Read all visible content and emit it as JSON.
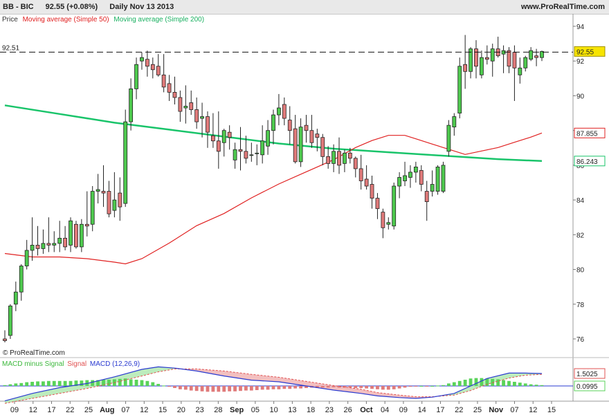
{
  "header": {
    "symbol": "BB - BIC",
    "price_change": "92.55 (+0.08%)",
    "period_date": "Daily  Nov 13 2013",
    "site": "www.ProRealTime.com"
  },
  "legend": {
    "price": "Price",
    "ma50": "Moving average (Simple 50)",
    "ma200": "Moving average (Simple 200)"
  },
  "watermark": "© ProRealTime.com",
  "macd_legend": {
    "diff": "MACD minus Signal",
    "signal": "Signal",
    "macd": "MACD (12,26,9)"
  },
  "colors": {
    "up": "#4ec94e",
    "down": "#e07a7a",
    "ma50": "#e02020",
    "ma200": "#19c46a",
    "macd": "#2a3ad0",
    "signal": "#e05050",
    "macd_bar": "#59d359"
  },
  "chart_data": [
    {
      "type": "candlestick",
      "title": "BB - BIC",
      "ylim": [
        75,
        94.5
      ],
      "yticks": [
        76,
        78,
        80,
        82,
        84,
        86,
        88,
        90,
        92,
        94
      ],
      "x_tick_labels": [
        "09",
        "12",
        "17",
        "22",
        "25",
        "Aug",
        "07",
        "12",
        "15",
        "20",
        "23",
        "28",
        "Sep",
        "05",
        "10",
        "13",
        "18",
        "23",
        "26",
        "Oct",
        "04",
        "09",
        "14",
        "17",
        "22",
        "25",
        "Nov",
        "07",
        "12",
        "15"
      ],
      "bold_tick_labels": [
        "Aug",
        "Sep",
        "Oct",
        "Nov"
      ],
      "reference_line": {
        "label": "92.51",
        "value": 92.51
      },
      "last_price_label": "92.55",
      "ma50_label": "87.855",
      "ma200_label": "86.243",
      "candles": [
        [
          76.0,
          76.5,
          75.8,
          75.9
        ],
        [
          76.2,
          78.0,
          76.0,
          77.9
        ],
        [
          78.0,
          79.3,
          77.6,
          78.7
        ],
        [
          78.7,
          80.3,
          78.2,
          80.2
        ],
        [
          80.2,
          81.7,
          80.0,
          81.1
        ],
        [
          81.1,
          83.0,
          80.5,
          81.4
        ],
        [
          81.4,
          82.5,
          80.8,
          81.2
        ],
        [
          81.2,
          82.3,
          80.9,
          81.5
        ],
        [
          81.5,
          83.0,
          81.0,
          81.4
        ],
        [
          81.4,
          82.2,
          81.0,
          81.5
        ],
        [
          81.5,
          82.8,
          81.0,
          81.8
        ],
        [
          81.8,
          82.5,
          81.1,
          81.3
        ],
        [
          81.4,
          83.0,
          81.0,
          82.8
        ],
        [
          82.6,
          82.8,
          81.2,
          81.3
        ],
        [
          81.3,
          82.9,
          81.0,
          82.6
        ],
        [
          82.6,
          84.5,
          81.9,
          82.5
        ],
        [
          82.6,
          84.8,
          82.2,
          84.5
        ],
        [
          84.5,
          85.5,
          83.8,
          84.6
        ],
        [
          84.5,
          86.0,
          83.6,
          84.4
        ],
        [
          84.5,
          85.1,
          83.0,
          83.2
        ],
        [
          83.4,
          85.6,
          83.0,
          84.0
        ],
        [
          84.4,
          85.3,
          82.8,
          83.6
        ],
        [
          83.8,
          89.2,
          83.6,
          88.5
        ],
        [
          88.5,
          91.0,
          88.0,
          90.4
        ],
        [
          90.4,
          92.2,
          89.8,
          91.8
        ],
        [
          92.0,
          92.5,
          91.5,
          92.2
        ],
        [
          92.1,
          92.6,
          91.1,
          91.7
        ],
        [
          91.8,
          92.2,
          91.0,
          91.5
        ],
        [
          91.7,
          92.4,
          91.1,
          91.2
        ],
        [
          91.2,
          92.4,
          90.2,
          90.5
        ],
        [
          90.7,
          91.2,
          89.7,
          90.2
        ],
        [
          90.2,
          91.1,
          89.5,
          89.9
        ],
        [
          89.9,
          90.3,
          88.5,
          89.1
        ],
        [
          89.3,
          90.6,
          88.4,
          89.4
        ],
        [
          89.6,
          90.3,
          88.9,
          89.2
        ],
        [
          89.2,
          89.9,
          88.1,
          88.5
        ],
        [
          88.7,
          89.6,
          87.6,
          88.8
        ],
        [
          88.8,
          89.1,
          87.0,
          87.9
        ],
        [
          87.7,
          89.0,
          87.0,
          87.4
        ],
        [
          87.4,
          89.1,
          85.8,
          86.8
        ],
        [
          87.3,
          88.1,
          86.5,
          88.0
        ],
        [
          87.9,
          88.3,
          86.9,
          87.6
        ],
        [
          86.3,
          87.3,
          85.8,
          86.9
        ],
        [
          86.9,
          88.2,
          85.7,
          86.8
        ],
        [
          86.8,
          87.7,
          86.1,
          86.4
        ],
        [
          86.6,
          87.3,
          86.2,
          86.6
        ],
        [
          86.7,
          87.2,
          86.0,
          86.7
        ],
        [
          86.6,
          88.3,
          86.1,
          87.4
        ],
        [
          87.1,
          88.6,
          86.6,
          88.0
        ],
        [
          88.0,
          89.2,
          87.2,
          88.9
        ],
        [
          88.9,
          90.1,
          88.3,
          89.3
        ],
        [
          89.5,
          89.9,
          88.3,
          88.7
        ],
        [
          88.6,
          89.4,
          87.2,
          88.0
        ],
        [
          88.1,
          88.9,
          86.1,
          86.2
        ],
        [
          86.2,
          88.7,
          85.9,
          88.2
        ],
        [
          88.3,
          88.9,
          87.3,
          88.0
        ],
        [
          88.0,
          88.9,
          87.0,
          87.3
        ],
        [
          87.8,
          88.1,
          86.8,
          87.6
        ],
        [
          87.6,
          87.8,
          86.0,
          86.5
        ],
        [
          86.5,
          87.1,
          85.8,
          86.1
        ],
        [
          86.1,
          87.2,
          85.6,
          86.8
        ],
        [
          86.8,
          87.6,
          85.5,
          86.0
        ],
        [
          86.1,
          86.9,
          85.6,
          86.7
        ],
        [
          86.7,
          87.0,
          86.1,
          86.4
        ],
        [
          86.4,
          86.5,
          85.3,
          85.8
        ],
        [
          85.8,
          86.6,
          84.6,
          85.1
        ],
        [
          85.2,
          86.0,
          84.6,
          84.8
        ],
        [
          84.9,
          85.4,
          83.5,
          84.1
        ],
        [
          84.1,
          84.4,
          82.9,
          83.5
        ],
        [
          83.3,
          83.5,
          81.8,
          82.4
        ],
        [
          82.6,
          83.0,
          82.3,
          82.7
        ],
        [
          82.5,
          85.0,
          82.3,
          84.8
        ],
        [
          84.8,
          85.6,
          84.1,
          85.3
        ],
        [
          85.1,
          86.2,
          84.8,
          85.4
        ],
        [
          85.3,
          86.0,
          84.7,
          85.6
        ],
        [
          85.6,
          86.2,
          85.0,
          85.9
        ],
        [
          85.7,
          86.0,
          84.5,
          84.9
        ],
        [
          84.5,
          85.1,
          82.8,
          83.9
        ],
        [
          84.5,
          85.7,
          84.2,
          84.9
        ],
        [
          84.5,
          86.0,
          84.3,
          85.9
        ],
        [
          84.5,
          86.2,
          84.4,
          86.0
        ],
        [
          86.8,
          88.6,
          86.5,
          88.3
        ],
        [
          88.2,
          89.0,
          87.7,
          88.8
        ],
        [
          89.0,
          92.2,
          88.7,
          91.7
        ],
        [
          91.8,
          93.5,
          90.4,
          91.4
        ],
        [
          91.4,
          92.8,
          91.0,
          92.7
        ],
        [
          92.7,
          93.2,
          91.0,
          91.7
        ],
        [
          91.2,
          92.6,
          91.0,
          92.2
        ],
        [
          92.2,
          92.9,
          91.8,
          92.1
        ],
        [
          92.0,
          93.0,
          91.1,
          92.7
        ],
        [
          92.7,
          93.4,
          92.2,
          92.3
        ],
        [
          92.4,
          92.9,
          91.3,
          92.6
        ],
        [
          92.6,
          92.8,
          91.3,
          91.7
        ],
        [
          92.5,
          92.9,
          89.7,
          91.6
        ],
        [
          91.2,
          92.2,
          90.7,
          91.6
        ],
        [
          91.6,
          92.3,
          91.4,
          92.2
        ],
        [
          92.1,
          92.8,
          92.0,
          92.6
        ],
        [
          92.3,
          92.7,
          91.7,
          92.2
        ],
        [
          92.2,
          92.6,
          92.0,
          92.55
        ]
      ],
      "ma50": [
        [
          0,
          80.92
        ],
        [
          5,
          80.72
        ],
        [
          10,
          80.72
        ],
        [
          15,
          80.62
        ],
        [
          20,
          80.42
        ],
        [
          22,
          80.32
        ],
        [
          25,
          80.62
        ],
        [
          30,
          81.52
        ],
        [
          35,
          82.52
        ],
        [
          40,
          83.22
        ],
        [
          45,
          84.12
        ],
        [
          50,
          84.92
        ],
        [
          55,
          85.62
        ],
        [
          60,
          86.32
        ],
        [
          64,
          87.02
        ],
        [
          67,
          87.42
        ],
        [
          70,
          87.72
        ],
        [
          73,
          87.72
        ],
        [
          75,
          87.52
        ],
        [
          78,
          87.22
        ],
        [
          81,
          86.92
        ],
        [
          84,
          86.62
        ],
        [
          87,
          86.82
        ],
        [
          90,
          87.02
        ],
        [
          93,
          87.32
        ],
        [
          96,
          87.62
        ],
        [
          98,
          87.855
        ]
      ],
      "ma200": [
        [
          0,
          89.45
        ],
        [
          10,
          88.95
        ],
        [
          20,
          88.45
        ],
        [
          30,
          88.05
        ],
        [
          40,
          87.65
        ],
        [
          50,
          87.25
        ],
        [
          60,
          86.95
        ],
        [
          70,
          86.75
        ],
        [
          80,
          86.55
        ],
        [
          90,
          86.35
        ],
        [
          98,
          86.243
        ]
      ]
    },
    {
      "type": "macd",
      "title": "MACD (12,26,9)",
      "value_labels": [
        "1.5025",
        "0.0995"
      ],
      "macd": [
        [
          0,
          -1.8
        ],
        [
          5,
          -0.9
        ],
        [
          10,
          -0.2
        ],
        [
          15,
          0.3
        ],
        [
          20,
          1.1
        ],
        [
          25,
          2.0
        ],
        [
          28,
          2.3
        ],
        [
          31,
          2.15
        ],
        [
          35,
          1.8
        ],
        [
          40,
          1.2
        ],
        [
          45,
          0.7
        ],
        [
          50,
          0.5
        ],
        [
          55,
          0.0
        ],
        [
          60,
          -0.5
        ],
        [
          65,
          -0.9
        ],
        [
          68,
          -1.2
        ],
        [
          72,
          -1.4
        ],
        [
          75,
          -1.5
        ],
        [
          78,
          -1.35
        ],
        [
          82,
          -0.9
        ],
        [
          85,
          0.0
        ],
        [
          88,
          0.9
        ],
        [
          92,
          1.55
        ],
        [
          95,
          1.55
        ],
        [
          98,
          1.5025
        ]
      ],
      "signal": [
        [
          0,
          -2.1
        ],
        [
          5,
          -1.5
        ],
        [
          10,
          -0.9
        ],
        [
          15,
          -0.3
        ],
        [
          20,
          0.4
        ],
        [
          25,
          1.2
        ],
        [
          28,
          1.7
        ],
        [
          31,
          2.05
        ],
        [
          35,
          2.05
        ],
        [
          40,
          1.8
        ],
        [
          45,
          1.4
        ],
        [
          50,
          1.05
        ],
        [
          55,
          0.55
        ],
        [
          60,
          0.05
        ],
        [
          65,
          -0.4
        ],
        [
          68,
          -0.8
        ],
        [
          72,
          -1.1
        ],
        [
          75,
          -1.3
        ],
        [
          78,
          -1.3
        ],
        [
          82,
          -1.1
        ],
        [
          85,
          -0.55
        ],
        [
          88,
          0.2
        ],
        [
          92,
          0.95
        ],
        [
          95,
          1.3
        ],
        [
          98,
          1.4
        ]
      ],
      "hist": [
        0.1,
        0.2,
        0.3,
        0.35,
        0.45,
        0.5,
        0.55,
        0.55,
        0.6,
        0.6,
        0.6,
        0.6,
        0.6,
        0.65,
        0.65,
        0.7,
        0.7,
        0.7,
        0.75,
        0.75,
        0.8,
        0.85,
        0.9,
        0.8,
        0.75,
        0.7,
        0.6,
        0.45,
        0.25,
        0.05,
        -0.1,
        -0.25,
        -0.4,
        -0.45,
        -0.55,
        -0.6,
        -0.65,
        -0.7,
        -0.7,
        -0.7,
        -0.7,
        -0.65,
        -0.65,
        -0.6,
        -0.55,
        -0.55,
        -0.5,
        -0.45,
        -0.45,
        -0.4,
        -0.4,
        -0.35,
        -0.35,
        -0.3,
        -0.3,
        -0.25,
        -0.2,
        -0.25,
        -0.2,
        -0.2,
        -0.15,
        -0.2,
        -0.2,
        -0.2,
        -0.25,
        -0.25,
        -0.3,
        -0.35,
        -0.4,
        -0.45,
        -0.45,
        -0.4,
        -0.3,
        -0.2,
        -0.1,
        -0.05,
        0.0,
        -0.05,
        0.0,
        0.05,
        0.1,
        0.3,
        0.45,
        0.6,
        0.75,
        0.9,
        0.95,
        0.95,
        0.9,
        0.85,
        0.8,
        0.7,
        0.6,
        0.5,
        0.4,
        0.3,
        0.2,
        0.15,
        0.1
      ]
    }
  ]
}
